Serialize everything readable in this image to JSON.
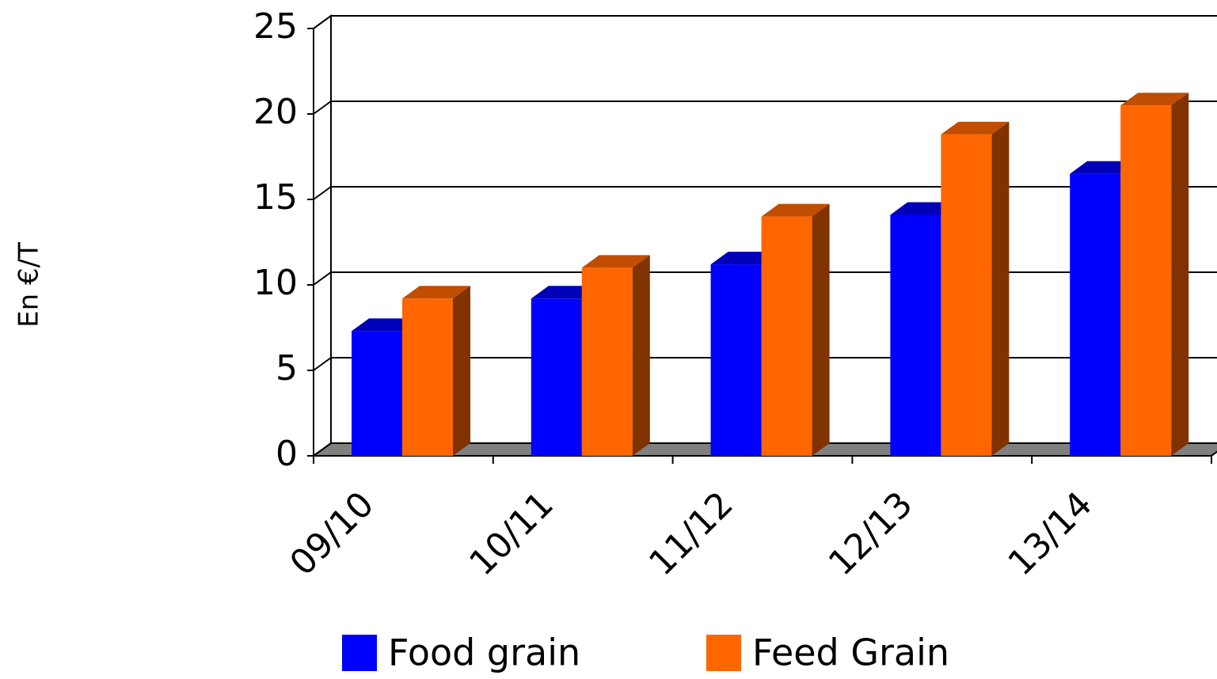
{
  "chart_data": {
    "type": "bar3d",
    "y_label": "En €/T",
    "categories": [
      "09/10",
      "10/11",
      "11/12",
      "12/13",
      "13/14"
    ],
    "series": [
      {
        "name": "Food grain",
        "color": "#0000ff",
        "side_color": "#00008a",
        "values": [
          7.3,
          9.2,
          11.2,
          14.1,
          16.5
        ]
      },
      {
        "name": "Feed Grain",
        "color": "#ff6600",
        "side_color": "#803300",
        "values": [
          9.2,
          11.0,
          14.0,
          18.8,
          20.5
        ]
      }
    ],
    "ylim": [
      0,
      25
    ],
    "yticks": [
      0,
      5,
      10,
      15,
      20,
      25
    ],
    "grid": true
  }
}
